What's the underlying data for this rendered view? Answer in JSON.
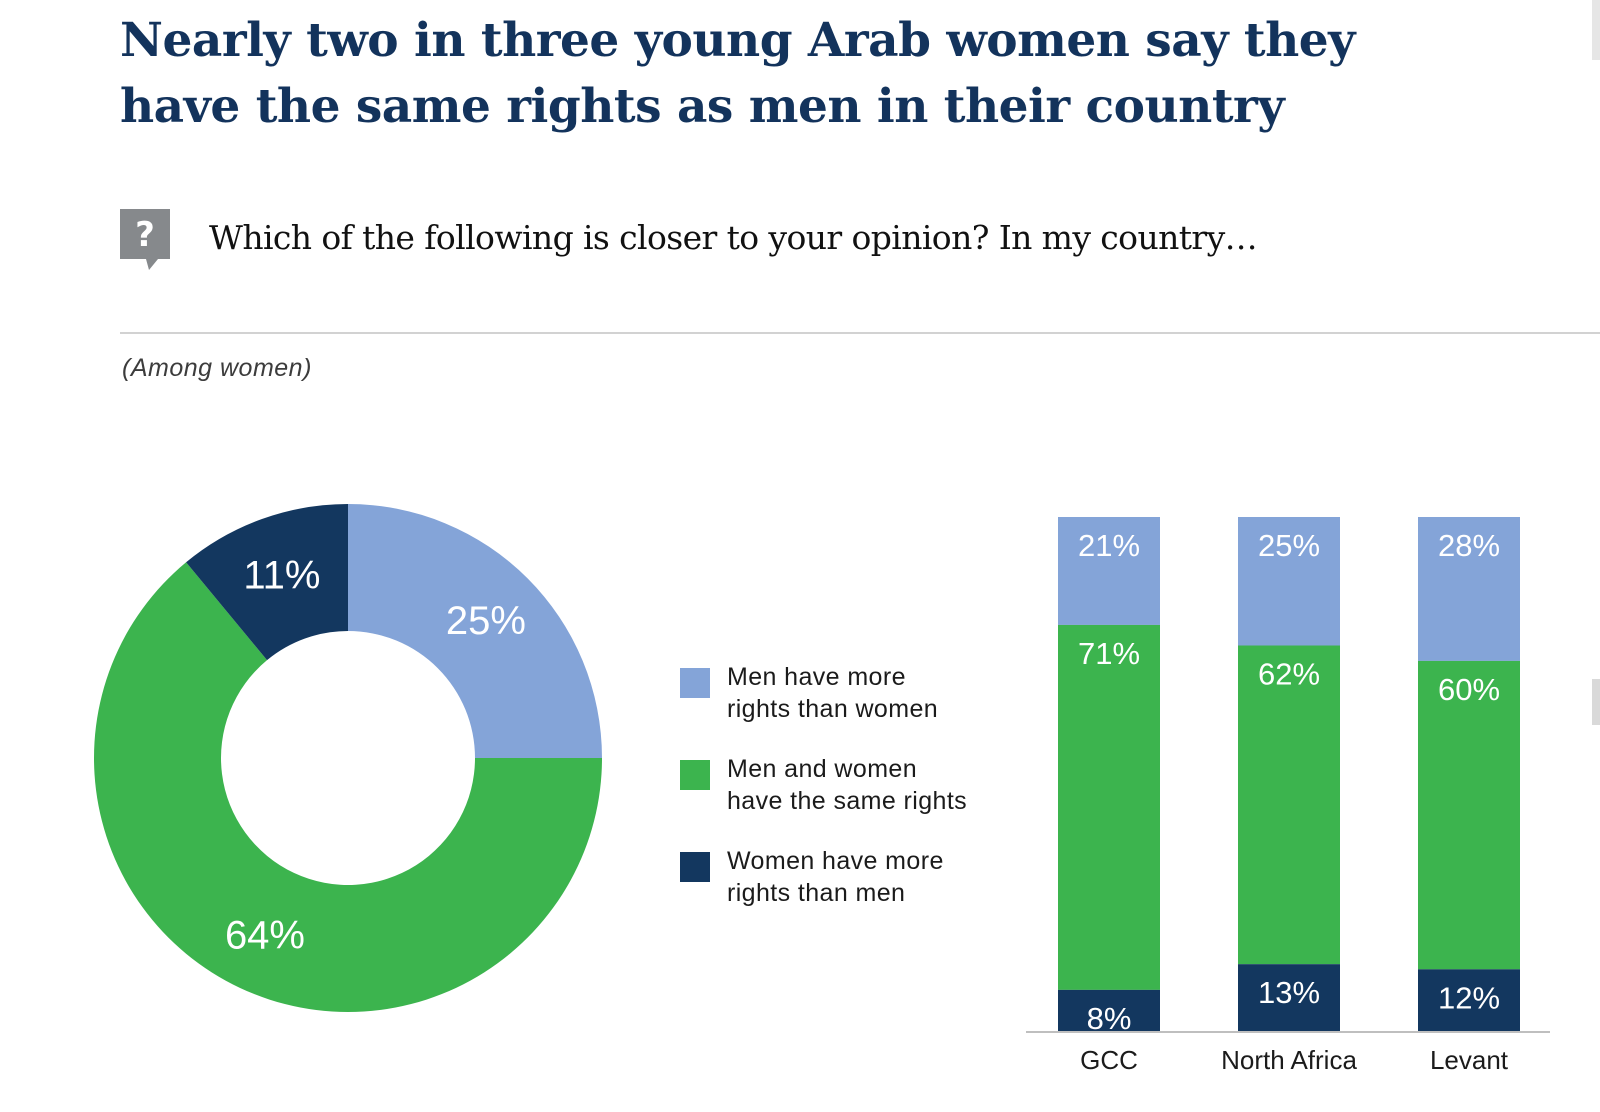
{
  "title_lines": [
    "Nearly two in three young Arab women say they",
    "have the same rights as men in their country"
  ],
  "question": "Which of the following is closer to your opinion? In my country…",
  "base_note": "(Among women)",
  "icon": "question-mark-icon",
  "colors": {
    "more_men": "#84a4d8",
    "same": "#3cb44e",
    "more_women": "#13375f",
    "title": "#13335c"
  },
  "legend": [
    {
      "key": "more_men",
      "lines": [
        "Men have more",
        "rights than women"
      ]
    },
    {
      "key": "same",
      "lines": [
        "Men and women",
        "have the same rights"
      ]
    },
    {
      "key": "more_women",
      "lines": [
        "Women have more",
        "rights than men"
      ]
    }
  ],
  "chart_data": [
    {
      "type": "pie",
      "subtype": "donut",
      "labels": [
        "Men have more rights than women",
        "Men and women have the same rights",
        "Women have more rights than men"
      ],
      "keys": [
        "more_men",
        "same",
        "more_women"
      ],
      "values": [
        25,
        64,
        11
      ],
      "value_labels": [
        "25%",
        "64%",
        "11%"
      ]
    },
    {
      "type": "bar",
      "subtype": "stacked-100",
      "categories": [
        "GCC",
        "North Africa",
        "Levant"
      ],
      "series": [
        {
          "name": "Men have more rights than women",
          "key": "more_men",
          "values": [
            21,
            25,
            28
          ],
          "value_labels": [
            "21%",
            "25%",
            "28%"
          ]
        },
        {
          "name": "Men and women have the same rights",
          "key": "same",
          "values": [
            71,
            62,
            60
          ],
          "value_labels": [
            "71%",
            "62%",
            "60%"
          ]
        },
        {
          "name": "Women have more rights than men",
          "key": "more_women",
          "values": [
            8,
            13,
            12
          ],
          "value_labels": [
            "8%",
            "13%",
            "12%"
          ]
        }
      ],
      "stack_order": "top-to-bottom"
    }
  ]
}
